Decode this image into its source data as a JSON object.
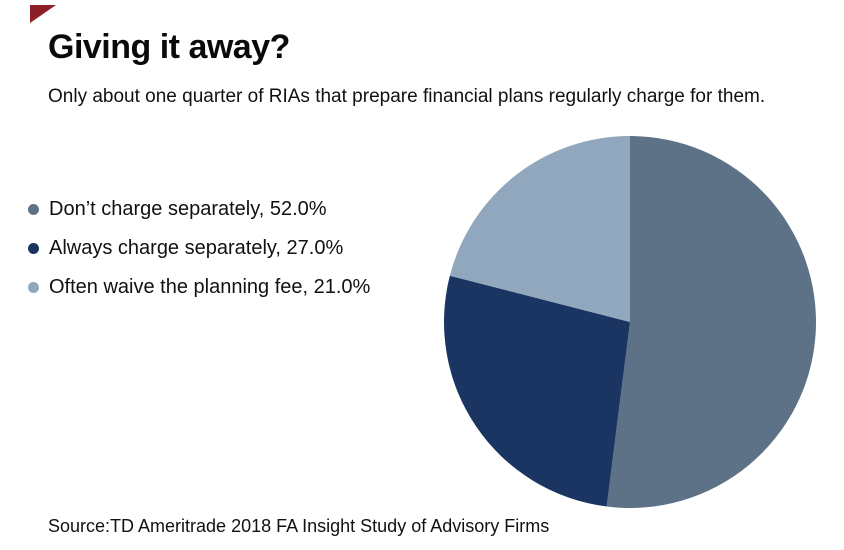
{
  "brand": {
    "flag_color": "#8e1f26"
  },
  "header": {
    "title": "Giving it away?",
    "subtitle": "Only about one quarter of RIAs that prepare financial plans regularly charge for them."
  },
  "chart_data": {
    "type": "pie",
    "title": "Giving it away?",
    "subtitle": "Only about one quarter of RIAs that prepare financial plans regularly charge for them.",
    "unit": "%",
    "start_angle_deg": 0,
    "direction": "clockwise",
    "legend_position": "left",
    "slices": [
      {
        "label": "Don’t charge separately",
        "value": 52.0,
        "color": "#5d7187"
      },
      {
        "label": "Always charge separately",
        "value": 27.0,
        "color": "#1b3563"
      },
      {
        "label": "Often waive the planning fee",
        "value": 21.0,
        "color": "#90a7bd"
      }
    ],
    "label_format": "{label}, {value}%"
  },
  "footer": {
    "source": "Source:TD Ameritrade 2018 FA Insight Study of Advisory Firms"
  }
}
